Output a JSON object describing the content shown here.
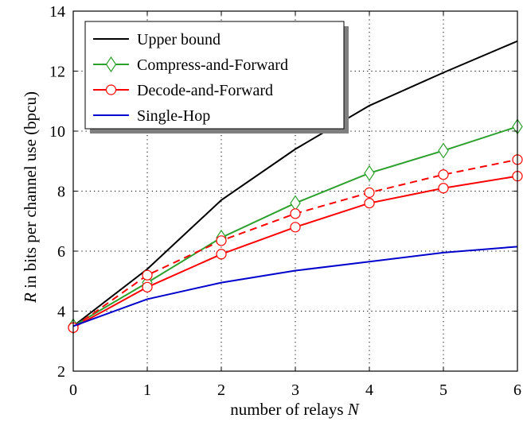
{
  "chart_data": {
    "type": "line",
    "title": "",
    "xlabel": "number of relays",
    "xlabel_var": "N",
    "ylabel_var": "R",
    "ylabel": "in bits per channel use (bpcu)",
    "x": [
      0,
      1,
      2,
      3,
      4,
      5,
      6
    ],
    "xlim": [
      0,
      6
    ],
    "ylim": [
      2,
      14
    ],
    "xticks": [
      "0",
      "1",
      "2",
      "3",
      "4",
      "5",
      "6"
    ],
    "yticks": [
      "2",
      "4",
      "6",
      "8",
      "10",
      "12",
      "14"
    ],
    "grid": true,
    "legend_position": "top-left",
    "series": [
      {
        "name": "Upper bound",
        "color": "#000000",
        "marker": "none",
        "dashed": false,
        "values": [
          3.5,
          5.4,
          7.7,
          9.4,
          10.85,
          11.95,
          13.0
        ]
      },
      {
        "name": "Compress-and-Forward",
        "color": "#2ca02c",
        "marker": "diamond",
        "dashed": false,
        "values": [
          3.5,
          4.95,
          6.45,
          7.6,
          8.6,
          9.35,
          10.15
        ]
      },
      {
        "name": "Decode-and-Forward",
        "color": "#ff0000",
        "marker": "circle",
        "dashed": false,
        "values": [
          3.45,
          4.8,
          5.9,
          6.8,
          7.6,
          8.1,
          8.5
        ]
      },
      {
        "name": "",
        "color": "#ff0000",
        "marker": "circle",
        "dashed": true,
        "values": [
          3.45,
          5.2,
          6.35,
          7.25,
          7.95,
          8.55,
          9.05
        ]
      },
      {
        "name": "Single-Hop",
        "color": "#0000cc",
        "marker": "none",
        "dashed": false,
        "values": [
          3.5,
          4.4,
          4.95,
          5.35,
          5.65,
          5.95,
          6.15
        ]
      }
    ]
  }
}
